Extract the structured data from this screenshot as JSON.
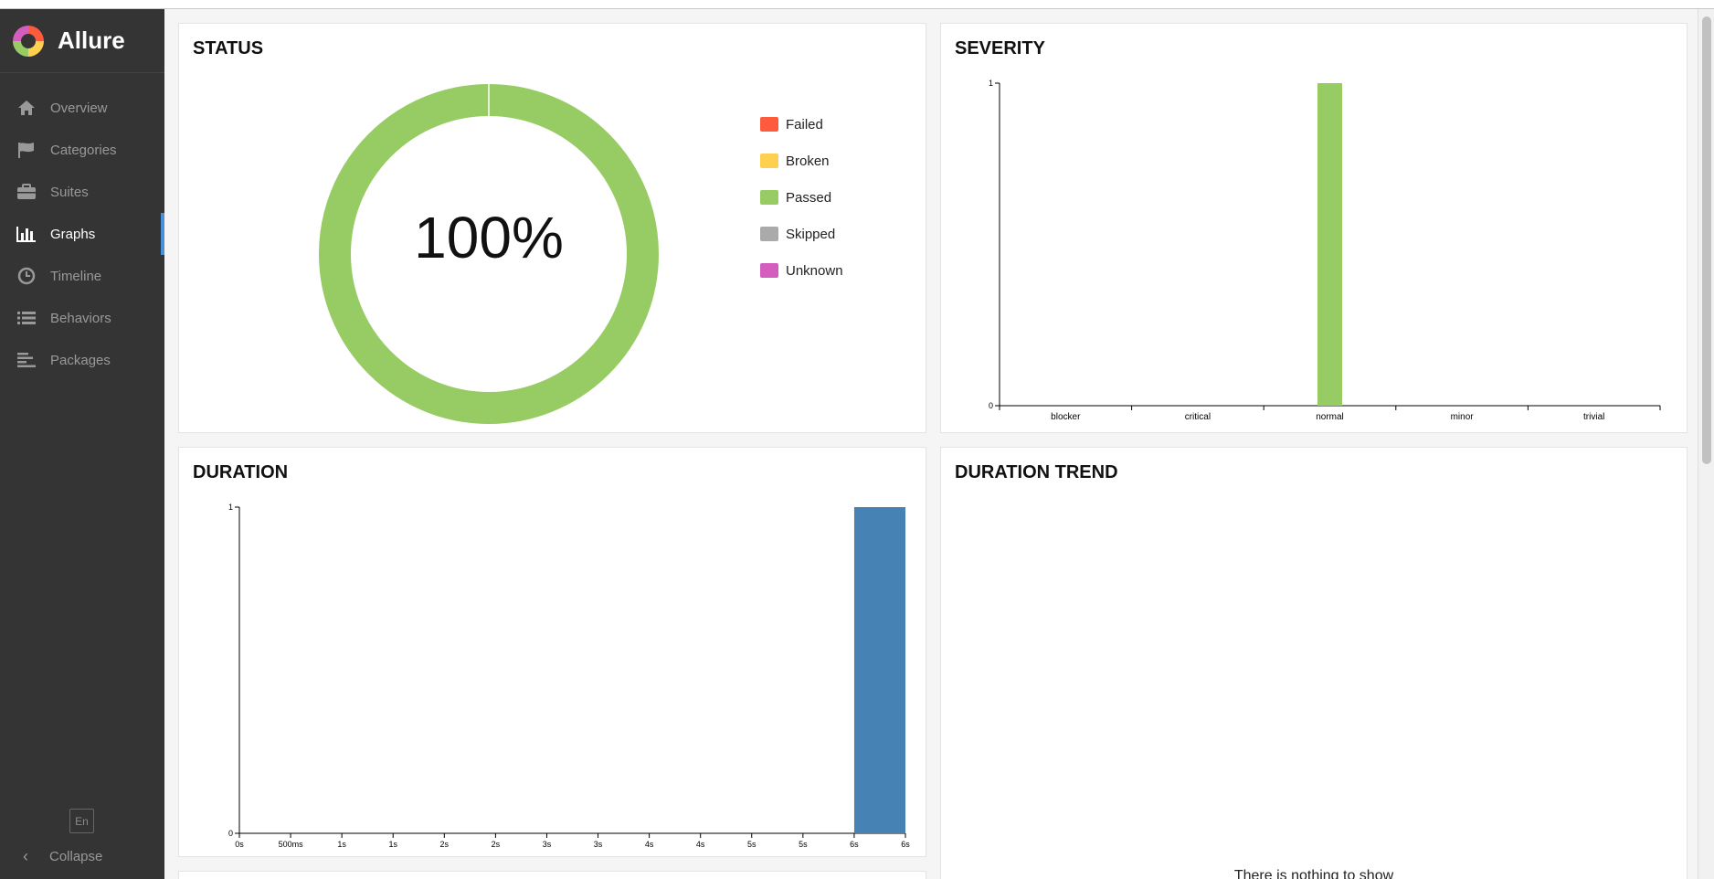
{
  "app": {
    "name": "Allure"
  },
  "sidebar": {
    "items": [
      {
        "label": "Overview",
        "icon": "home-icon"
      },
      {
        "label": "Categories",
        "icon": "flag-icon"
      },
      {
        "label": "Suites",
        "icon": "briefcase-icon"
      },
      {
        "label": "Graphs",
        "icon": "bar-chart-icon",
        "active": true
      },
      {
        "label": "Timeline",
        "icon": "clock-icon"
      },
      {
        "label": "Behaviors",
        "icon": "list-icon"
      },
      {
        "label": "Packages",
        "icon": "align-left-icon"
      }
    ],
    "language": "En",
    "collapse_label": "Collapse"
  },
  "widgets": {
    "status": {
      "title": "STATUS",
      "center_label": "100%"
    },
    "severity": {
      "title": "SEVERITY"
    },
    "duration": {
      "title": "DURATION"
    },
    "duration_trend": {
      "title": "DURATION TREND",
      "empty_text": "There is nothing to show"
    }
  },
  "colors": {
    "failed": "#fd5a3e",
    "broken": "#ffd050",
    "passed": "#97cc64",
    "skipped": "#aaaaaa",
    "unknown": "#d35ebe",
    "duration_bar": "#4682b4",
    "sidebar_bg": "#343434",
    "active_accent": "#4a90d9"
  },
  "chart_data": [
    {
      "type": "pie",
      "title": "STATUS",
      "categories": [
        "Failed",
        "Broken",
        "Passed",
        "Skipped",
        "Unknown"
      ],
      "values": [
        0,
        0,
        1,
        0,
        0
      ],
      "center_label": "100%"
    },
    {
      "type": "bar",
      "title": "SEVERITY",
      "categories": [
        "blocker",
        "critical",
        "normal",
        "minor",
        "trivial"
      ],
      "values": [
        0,
        0,
        1,
        0,
        0
      ],
      "ylim": [
        0,
        1
      ],
      "yticks": [
        "0",
        "1"
      ]
    },
    {
      "type": "bar",
      "title": "DURATION",
      "xticks": [
        "0s",
        "500ms",
        "1s",
        "1s",
        "2s",
        "2s",
        "3s",
        "3s",
        "4s",
        "4s",
        "5s",
        "5s",
        "6s",
        "6s"
      ],
      "bins": [
        {
          "from": 6,
          "to": 6.5,
          "count": 1
        }
      ],
      "ylim": [
        0,
        1
      ],
      "yticks": [
        "0",
        "1"
      ]
    }
  ]
}
